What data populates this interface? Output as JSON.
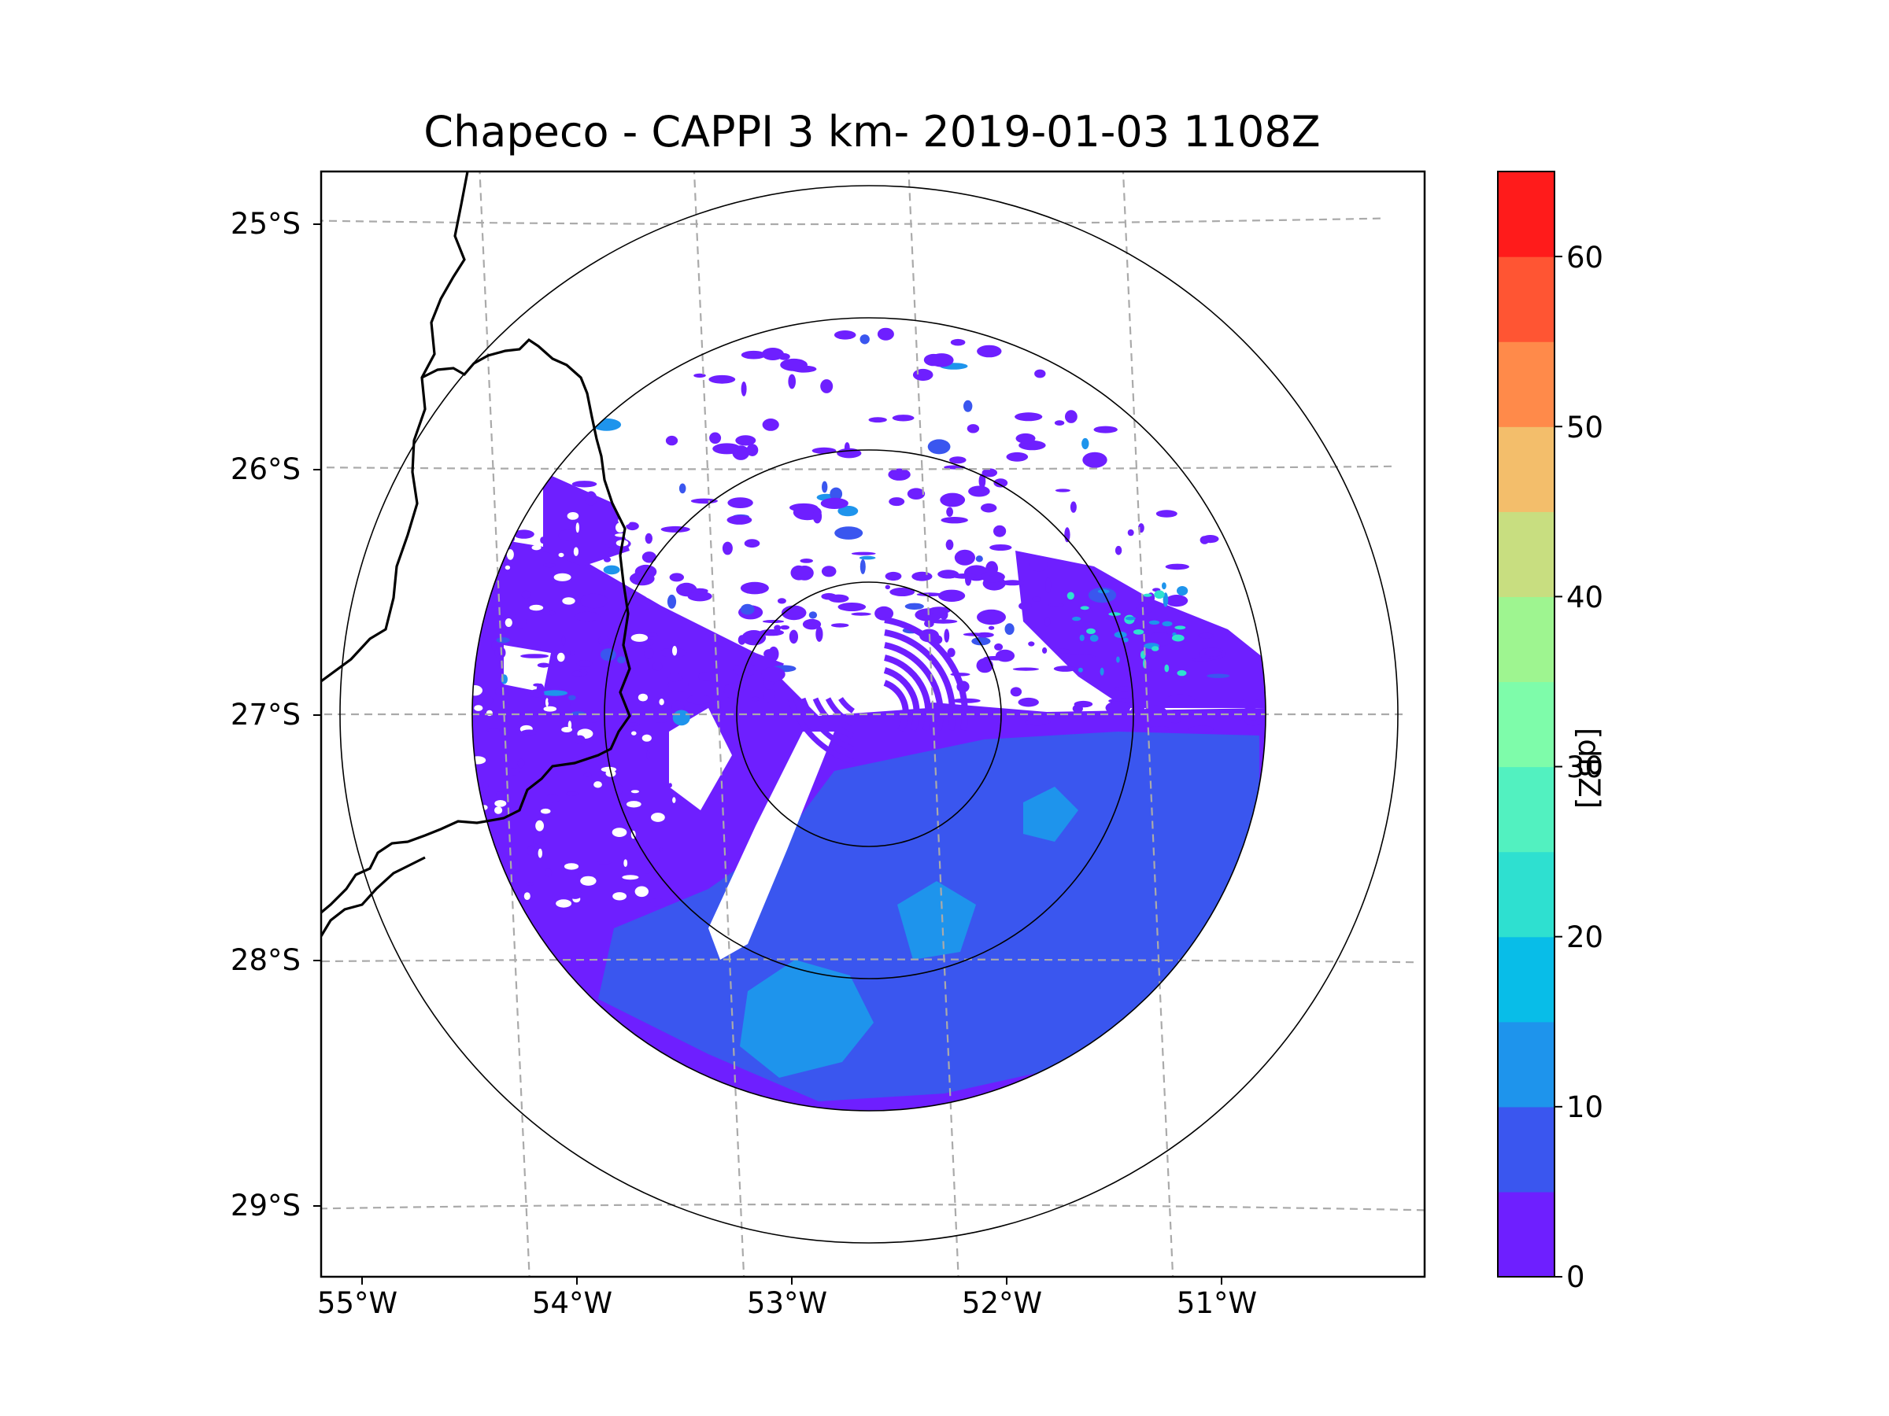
{
  "title": "Chapeco - CAPPI 3 km- 2019-01-03 1108Z",
  "lat_labels": [
    "25°S",
    "26°S",
    "27°S",
    "28°S",
    "29°S"
  ],
  "lon_labels": [
    "55°W",
    "54°W",
    "53°W",
    "52°W",
    "51°W"
  ],
  "colorbar": {
    "label": "[dBZ]",
    "ticks": [
      "0",
      "10",
      "20",
      "30",
      "40",
      "50",
      "60"
    ],
    "range": [
      0,
      65
    ],
    "step": 5,
    "colors": [
      "#6e1fff",
      "#3a56ef",
      "#1e94ec",
      "#08bde8",
      "#2ee0d0",
      "#52f1c0",
      "#7efcaa",
      "#9ef590",
      "#c8de80",
      "#f3be6b",
      "#ff8a4a",
      "#ff5533",
      "#ff1b1b"
    ]
  },
  "map": {
    "projection": "PlateCarree",
    "lon_range": [
      -55.17,
      -50.03
    ],
    "lat_range": [
      -29.3,
      -24.8
    ],
    "radar_site": "Chapeco",
    "radar_center": {
      "lon": -52.6,
      "lat": -27.0
    },
    "range_rings_km": [
      100,
      200,
      300,
      400
    ],
    "data_range_km": 300,
    "coastline_color": "#000000",
    "grid_color": "#aaaaaa"
  },
  "colors": {
    "background": "#ffffff",
    "axes": "#000000"
  }
}
